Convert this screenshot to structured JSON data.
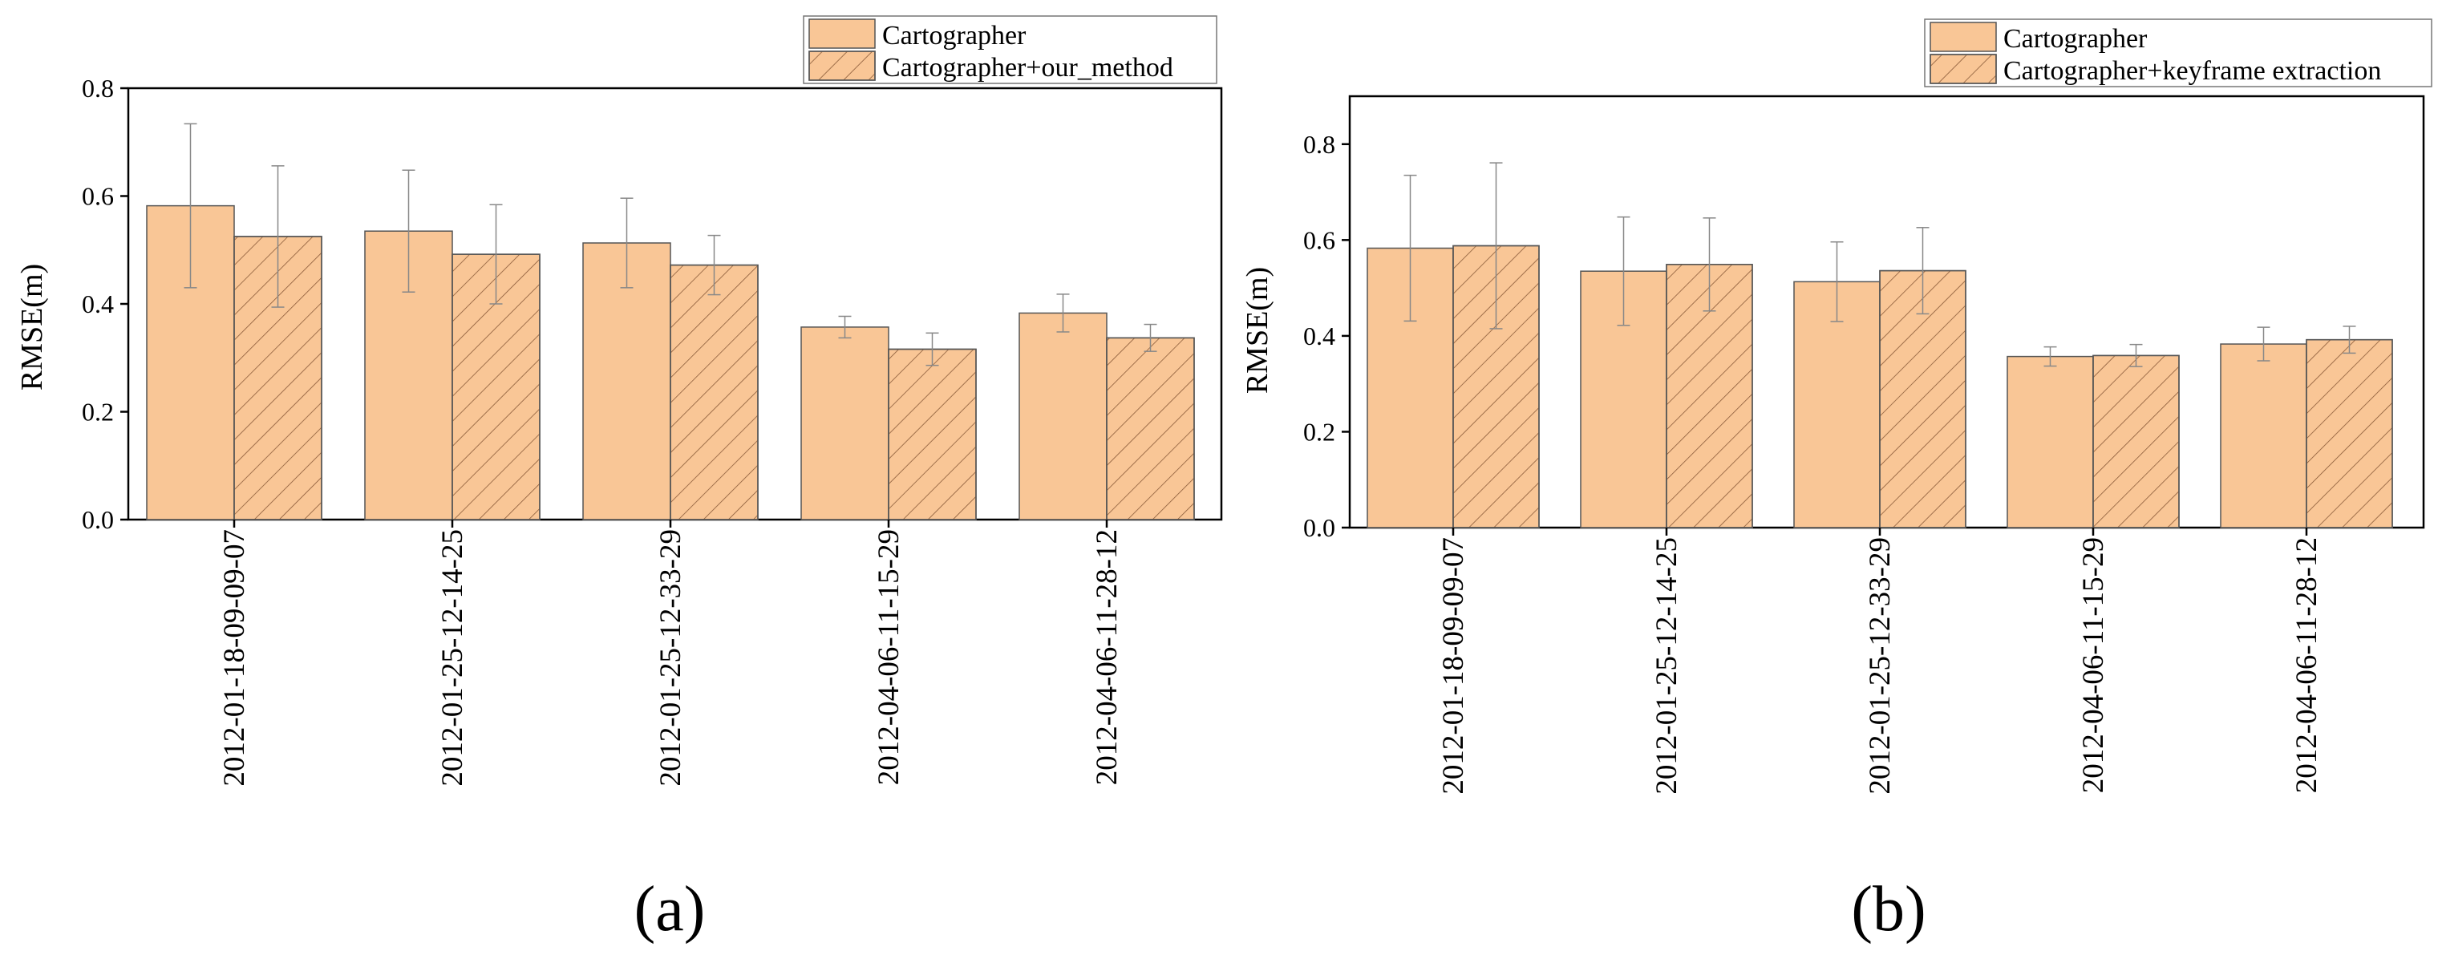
{
  "colors": {
    "bar_fill": "#f9c696",
    "bar_stroke": "#555555",
    "hatch": "#8a5a38",
    "error_bar": "#888888",
    "axis": "#000000"
  },
  "chart_data": [
    {
      "type": "bar",
      "panel_label": "(a)",
      "ylabel": "RMSE(m)",
      "ylim": [
        0,
        0.8
      ],
      "yticks": [
        "0.0",
        "0.2",
        "0.4",
        "0.6",
        "0.8"
      ],
      "categories": [
        "2012-01-18-09-09-07",
        "2012-01-25-12-14-25",
        "2012-01-25-12-33-29",
        "2012-04-06-11-15-29",
        "2012-04-06-11-28-12"
      ],
      "legend_position": "top-right",
      "series": [
        {
          "name": "Cartographer",
          "pattern": "solid",
          "values": [
            0.582,
            0.535,
            0.513,
            0.357,
            0.383
          ],
          "errors": [
            0.152,
            0.113,
            0.083,
            0.02,
            0.035
          ]
        },
        {
          "name": "Cartographer+our_method",
          "pattern": "hatched",
          "values": [
            0.525,
            0.492,
            0.472,
            0.316,
            0.337
          ],
          "errors": [
            0.131,
            0.092,
            0.055,
            0.03,
            0.025
          ]
        }
      ]
    },
    {
      "type": "bar",
      "panel_label": "(b)",
      "ylabel": "RMSE(m)",
      "ylim": [
        0,
        0.9
      ],
      "yticks": [
        "0.0",
        "0.2",
        "0.4",
        "0.6",
        "0.8"
      ],
      "categories": [
        "2012-01-18-09-09-07",
        "2012-01-25-12-14-25",
        "2012-01-25-12-33-29",
        "2012-04-06-11-15-29",
        "2012-04-06-11-28-12"
      ],
      "legend_position": "top-right",
      "series": [
        {
          "name": "Cartographer",
          "pattern": "solid",
          "values": [
            0.583,
            0.535,
            0.513,
            0.357,
            0.383
          ],
          "errors": [
            0.152,
            0.113,
            0.083,
            0.02,
            0.035
          ]
        },
        {
          "name": "Cartographer+keyframe extraction",
          "pattern": "hatched",
          "values": [
            0.588,
            0.549,
            0.536,
            0.359,
            0.392
          ],
          "errors": [
            0.173,
            0.097,
            0.09,
            0.023,
            0.028
          ]
        }
      ]
    }
  ]
}
